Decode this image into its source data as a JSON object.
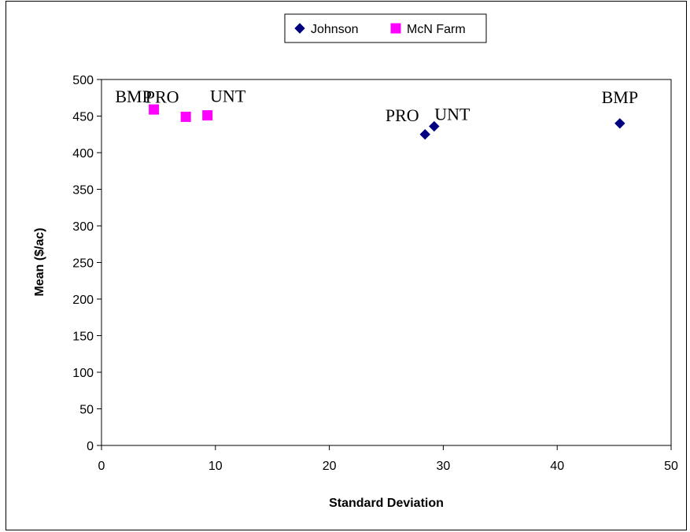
{
  "chart_data": {
    "type": "scatter",
    "title": "",
    "xlabel": "Standard Deviation",
    "ylabel": "Mean ($/ac)",
    "xlim": [
      0,
      50
    ],
    "ylim": [
      0,
      500
    ],
    "x_ticks": [
      0,
      10,
      20,
      30,
      40,
      50
    ],
    "y_ticks": [
      0,
      50,
      100,
      150,
      200,
      250,
      300,
      350,
      400,
      450,
      500
    ],
    "grid": false,
    "legend_position": "top-center",
    "series": [
      {
        "name": "Johnson",
        "marker": "diamond",
        "color": "#000080",
        "points": [
          {
            "x": 28.4,
            "y": 425,
            "label": "PRO"
          },
          {
            "x": 29.2,
            "y": 436,
            "label": "UNT"
          },
          {
            "x": 45.5,
            "y": 440,
            "label": "BMP"
          }
        ]
      },
      {
        "name": "McN Farm",
        "marker": "square",
        "color": "#ff00ff",
        "points": [
          {
            "x": 4.6,
            "y": 459,
            "label": "BMP"
          },
          {
            "x": 7.4,
            "y": 449,
            "label": "PRO"
          },
          {
            "x": 9.3,
            "y": 451,
            "label": "UNT"
          }
        ]
      }
    ]
  }
}
